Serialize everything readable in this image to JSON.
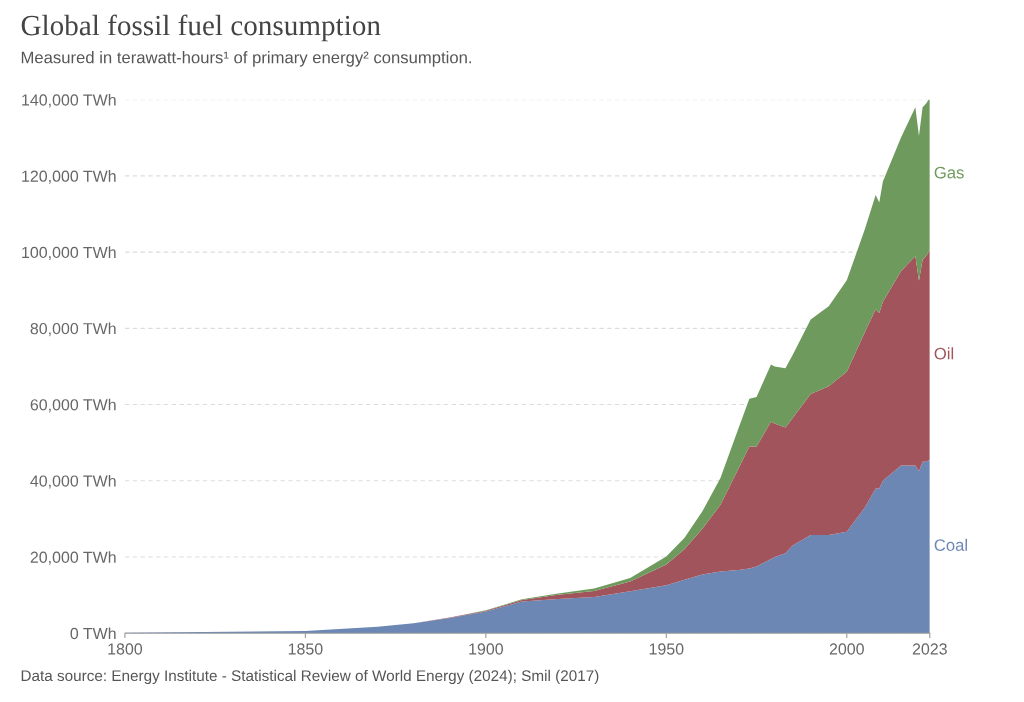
{
  "chart_data": {
    "type": "area",
    "stacked": true,
    "title": "Global fossil fuel consumption",
    "subtitle": "Measured in terawatt-hours¹ of primary energy² consumption.",
    "x": [
      1800,
      1850,
      1870,
      1880,
      1890,
      1900,
      1910,
      1920,
      1930,
      1940,
      1950,
      1955,
      1960,
      1965,
      1970,
      1973,
      1975,
      1979,
      1980,
      1983,
      1985,
      1990,
      1995,
      2000,
      2005,
      2008,
      2009,
      2010,
      2015,
      2019,
      2020,
      2021,
      2022,
      2023
    ],
    "series": [
      {
        "name": "Coal",
        "color": "#6d87b5",
        "values": [
          100,
          600,
          1700,
          2600,
          4000,
          5700,
          8300,
          9000,
          9500,
          11000,
          12600,
          14000,
          15400,
          16200,
          16600,
          17000,
          17500,
          19500,
          20000,
          21000,
          23000,
          25800,
          25800,
          26600,
          33000,
          38000,
          38000,
          40000,
          44000,
          44000,
          42500,
          45000,
          45000,
          45500
        ]
      },
      {
        "name": "Oil",
        "color": "#a2545c",
        "values": [
          0,
          0,
          0,
          0,
          100,
          200,
          400,
          1100,
          1600,
          2600,
          5400,
          8000,
          12000,
          17500,
          26600,
          32000,
          31500,
          36000,
          35000,
          33000,
          33500,
          37000,
          39000,
          42000,
          46000,
          47000,
          46000,
          47000,
          51000,
          55000,
          50000,
          53000,
          54000,
          55000
        ]
      },
      {
        "name": "Gas",
        "color": "#6f9a5d",
        "values": [
          0,
          0,
          0,
          0,
          0,
          100,
          200,
          300,
          600,
          900,
          2100,
          3000,
          4600,
          7000,
          10600,
          12500,
          13000,
          15000,
          15000,
          15500,
          16500,
          19500,
          21000,
          24000,
          27000,
          30000,
          29000,
          31500,
          35000,
          39000,
          38000,
          40000,
          40000,
          40000
        ]
      }
    ],
    "xlim": [
      1800,
      2023
    ],
    "xticks": [
      1800,
      1850,
      1900,
      1950,
      2000,
      2023
    ],
    "ylim": [
      0,
      140000
    ],
    "yticks": [
      {
        "value": 0,
        "label": "0 TWh"
      },
      {
        "value": 20000,
        "label": "20,000 TWh"
      },
      {
        "value": 40000,
        "label": "40,000 TWh"
      },
      {
        "value": 60000,
        "label": "60,000 TWh"
      },
      {
        "value": 80000,
        "label": "80,000 TWh"
      },
      {
        "value": 100000,
        "label": "100,000 TWh"
      },
      {
        "value": 120000,
        "label": "120,000 TWh"
      },
      {
        "value": 140000,
        "label": "140,000 TWh"
      }
    ],
    "grid": "y",
    "legend": false,
    "annotations": [
      "Data source: Energy Institute - Statistical Review of World Energy (2024); Smil (2017)"
    ]
  }
}
